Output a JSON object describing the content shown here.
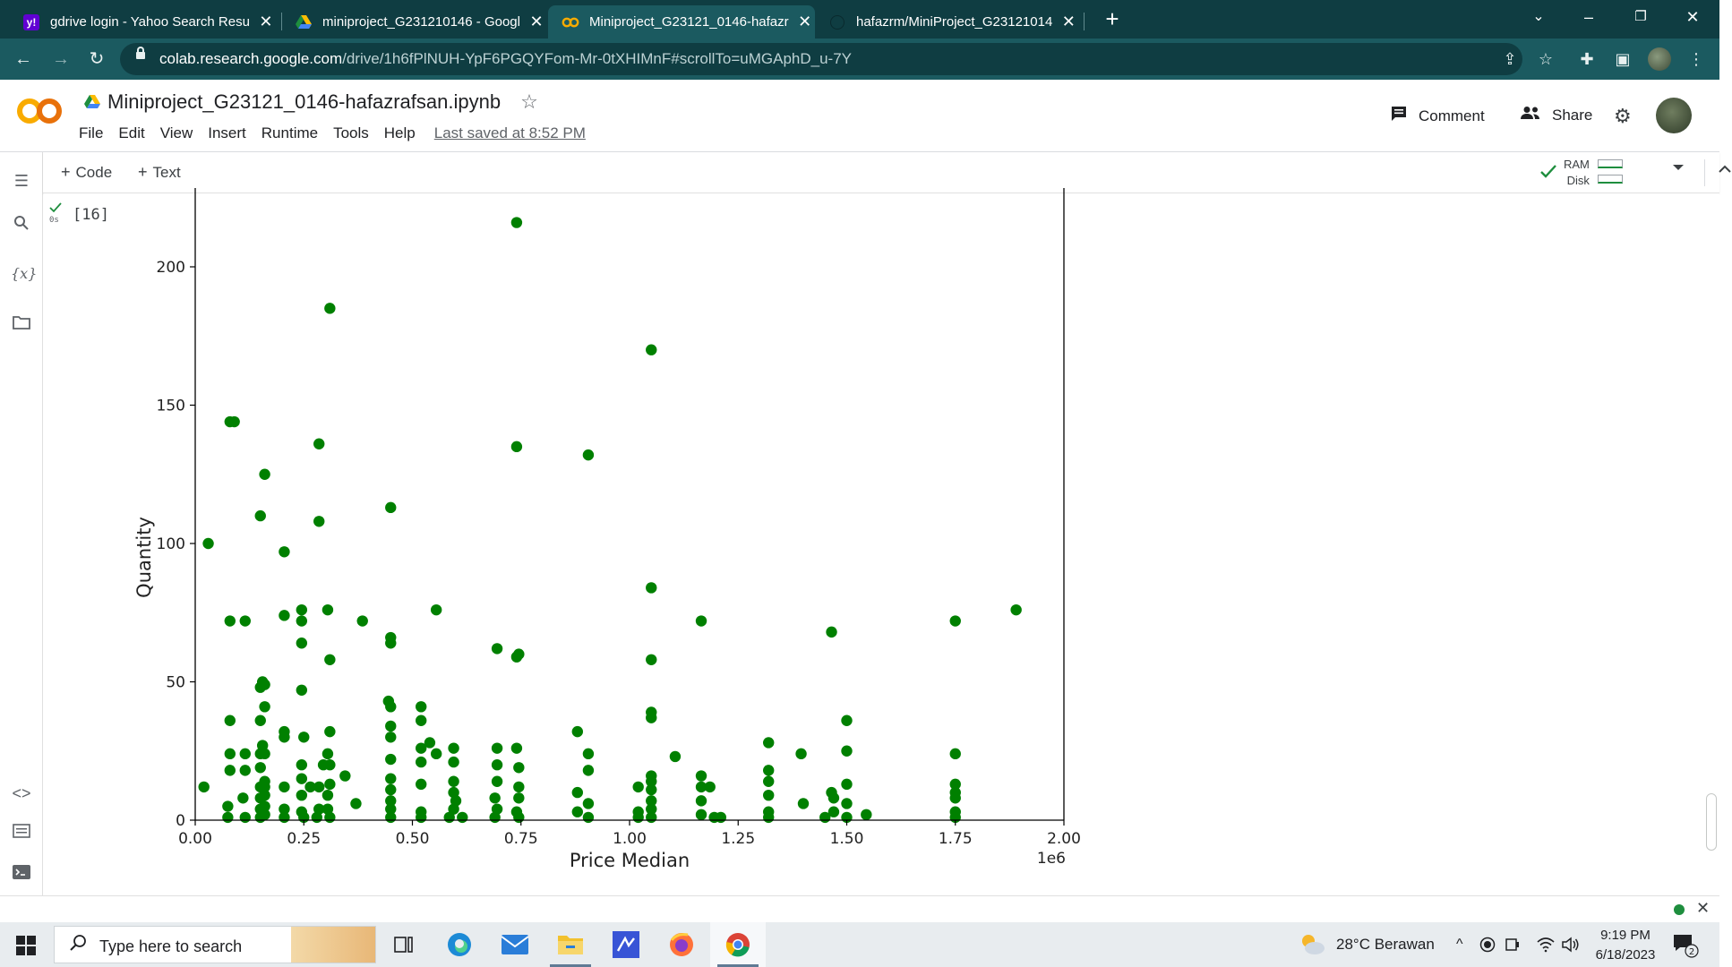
{
  "browser": {
    "tabs": [
      {
        "title": "gdrive login - Yahoo Search Resu",
        "icon": "yahoo-icon",
        "active": false
      },
      {
        "title": "miniproject_G231210146 - Googl",
        "icon": "google-drive-icon",
        "active": false
      },
      {
        "title": "Miniproject_G23121_0146-hafazr",
        "icon": "colab-icon",
        "active": true
      },
      {
        "title": "hafazrm/MiniProject_G23121014",
        "icon": "github-icon",
        "active": false
      }
    ],
    "url_host": "colab.research.google.com",
    "url_path": "/drive/1h6fPlNUH-YpF6PGQYFom-Mr-0tXHIMnF#scrollTo=uMGAphD_u-7Y"
  },
  "colab": {
    "notebook_title": "Miniproject_G23121_0146-hafazrafsan.ipynb",
    "menu": [
      "File",
      "Edit",
      "View",
      "Insert",
      "Runtime",
      "Tools",
      "Help"
    ],
    "last_saved": "Last saved at 8:52 PM",
    "comment_label": "Comment",
    "share_label": "Share",
    "add_code_label": "Code",
    "add_text_label": "Text",
    "ram_label": "RAM",
    "disk_label": "Disk",
    "cell_exec_count": "[16]",
    "cell_exec_time": "0s"
  },
  "chart_data": {
    "type": "scatter",
    "xlabel": "Price Median",
    "ylabel": "Quantity",
    "x_offset_label": "1e6",
    "xlim": [
      0,
      2000000
    ],
    "ylim": [
      0,
      220
    ],
    "x_ticks": [
      "0.00",
      "0.25",
      "0.50",
      "0.75",
      "1.00",
      "1.25",
      "1.50",
      "1.75",
      "2.00"
    ],
    "y_ticks": [
      "0",
      "50",
      "100",
      "150",
      "200"
    ],
    "color": "#008000",
    "points": [
      [
        740000,
        216
      ],
      [
        310000,
        185
      ],
      [
        1050000,
        170
      ],
      [
        80000,
        144
      ],
      [
        90000,
        144
      ],
      [
        285000,
        136
      ],
      [
        740000,
        135
      ],
      [
        905000,
        132
      ],
      [
        160000,
        125
      ],
      [
        150000,
        110
      ],
      [
        285000,
        108
      ],
      [
        450000,
        113
      ],
      [
        30000,
        100
      ],
      [
        205000,
        97
      ],
      [
        1050000,
        84
      ],
      [
        450000,
        66
      ],
      [
        450000,
        64
      ],
      [
        555000,
        76
      ],
      [
        305000,
        76
      ],
      [
        245000,
        76
      ],
      [
        205000,
        74
      ],
      [
        245000,
        72
      ],
      [
        80000,
        72
      ],
      [
        115000,
        72
      ],
      [
        385000,
        72
      ],
      [
        1165000,
        72
      ],
      [
        1750000,
        72
      ],
      [
        1890000,
        76
      ],
      [
        1465000,
        68
      ],
      [
        245000,
        64
      ],
      [
        695000,
        62
      ],
      [
        745000,
        60
      ],
      [
        740000,
        59
      ],
      [
        310000,
        58
      ],
      [
        1050000,
        58
      ],
      [
        155000,
        50
      ],
      [
        160000,
        49
      ],
      [
        150000,
        48
      ],
      [
        245000,
        47
      ],
      [
        445000,
        43
      ],
      [
        450000,
        41
      ],
      [
        520000,
        41
      ],
      [
        160000,
        41
      ],
      [
        1050000,
        39
      ],
      [
        1050000,
        37
      ],
      [
        80000,
        36
      ],
      [
        150000,
        36
      ],
      [
        520000,
        36
      ],
      [
        1500000,
        36
      ],
      [
        880000,
        32
      ],
      [
        205000,
        32
      ],
      [
        310000,
        32
      ],
      [
        450000,
        34
      ],
      [
        450000,
        30
      ],
      [
        250000,
        30
      ],
      [
        205000,
        30
      ],
      [
        1320000,
        28
      ],
      [
        540000,
        28
      ],
      [
        155000,
        27
      ],
      [
        520000,
        26
      ],
      [
        595000,
        26
      ],
      [
        695000,
        26
      ],
      [
        740000,
        26
      ],
      [
        80000,
        24
      ],
      [
        115000,
        24
      ],
      [
        305000,
        24
      ],
      [
        150000,
        24
      ],
      [
        160000,
        24
      ],
      [
        555000,
        24
      ],
      [
        1395000,
        24
      ],
      [
        905000,
        24
      ],
      [
        1750000,
        24
      ],
      [
        1500000,
        25
      ],
      [
        1105000,
        23
      ],
      [
        450000,
        22
      ],
      [
        245000,
        20
      ],
      [
        295000,
        20
      ],
      [
        310000,
        20
      ],
      [
        520000,
        21
      ],
      [
        595000,
        21
      ],
      [
        695000,
        20
      ],
      [
        745000,
        19
      ],
      [
        80000,
        18
      ],
      [
        115000,
        18
      ],
      [
        1320000,
        18
      ],
      [
        905000,
        18
      ],
      [
        1165000,
        16
      ],
      [
        1050000,
        16
      ],
      [
        345000,
        16
      ],
      [
        150000,
        19
      ],
      [
        160000,
        14
      ],
      [
        450000,
        15
      ],
      [
        245000,
        15
      ],
      [
        595000,
        14
      ],
      [
        695000,
        14
      ],
      [
        1050000,
        14
      ],
      [
        1320000,
        14
      ],
      [
        1750000,
        13
      ],
      [
        1500000,
        13
      ],
      [
        1165000,
        12
      ],
      [
        1185000,
        12
      ],
      [
        20000,
        12
      ],
      [
        150000,
        12
      ],
      [
        160000,
        12
      ],
      [
        205000,
        12
      ],
      [
        265000,
        12
      ],
      [
        285000,
        12
      ],
      [
        310000,
        13
      ],
      [
        520000,
        13
      ],
      [
        450000,
        11
      ],
      [
        745000,
        12
      ],
      [
        1020000,
        12
      ],
      [
        1050000,
        11
      ],
      [
        595000,
        10
      ],
      [
        1465000,
        10
      ],
      [
        1750000,
        10
      ],
      [
        880000,
        10
      ],
      [
        1320000,
        9
      ],
      [
        1470000,
        8
      ],
      [
        1750000,
        8
      ],
      [
        110000,
        8
      ],
      [
        150000,
        8
      ],
      [
        160000,
        9
      ],
      [
        245000,
        9
      ],
      [
        305000,
        9
      ],
      [
        450000,
        7
      ],
      [
        600000,
        7
      ],
      [
        690000,
        8
      ],
      [
        745000,
        8
      ],
      [
        1050000,
        7
      ],
      [
        1165000,
        7
      ],
      [
        1400000,
        6
      ],
      [
        370000,
        6
      ],
      [
        1500000,
        6
      ],
      [
        905000,
        6
      ],
      [
        75000,
        5
      ],
      [
        150000,
        4
      ],
      [
        160000,
        5
      ],
      [
        205000,
        4
      ],
      [
        245000,
        3
      ],
      [
        285000,
        4
      ],
      [
        305000,
        4
      ],
      [
        450000,
        4
      ],
      [
        520000,
        3
      ],
      [
        595000,
        4
      ],
      [
        695000,
        4
      ],
      [
        740000,
        3
      ],
      [
        880000,
        3
      ],
      [
        1020000,
        3
      ],
      [
        1050000,
        4
      ],
      [
        1320000,
        3
      ],
      [
        1470000,
        3
      ],
      [
        1545000,
        2
      ],
      [
        1750000,
        3
      ],
      [
        1165000,
        2
      ],
      [
        1195000,
        1
      ],
      [
        1210000,
        1
      ],
      [
        75000,
        1
      ],
      [
        115000,
        1
      ],
      [
        150000,
        1
      ],
      [
        160000,
        2
      ],
      [
        205000,
        1
      ],
      [
        250000,
        1
      ],
      [
        280000,
        1
      ],
      [
        310000,
        1
      ],
      [
        450000,
        1
      ],
      [
        520000,
        1
      ],
      [
        585000,
        1
      ],
      [
        615000,
        1
      ],
      [
        690000,
        1
      ],
      [
        745000,
        1
      ],
      [
        905000,
        1
      ],
      [
        1020000,
        1
      ],
      [
        1050000,
        1
      ],
      [
        1320000,
        1
      ],
      [
        1450000,
        1
      ],
      [
        1500000,
        1
      ],
      [
        1750000,
        1
      ]
    ]
  },
  "taskbar": {
    "search_placeholder": "Type here to search",
    "weather": "28°C  Berawan",
    "time": "9:19 PM",
    "date": "6/18/2023",
    "notification_count": "2"
  }
}
